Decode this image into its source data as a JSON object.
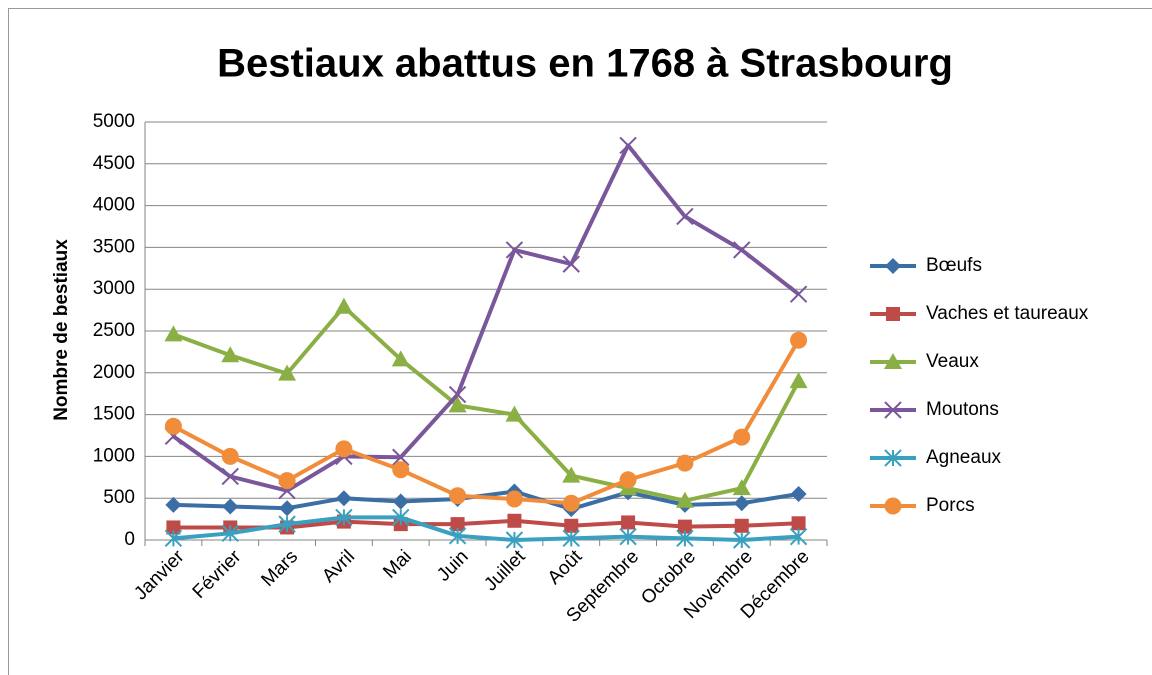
{
  "chart_data": {
    "type": "line",
    "title": "Bestiaux abattus en 1768 à Strasbourg",
    "y_label": "Nombre de bestiaux",
    "categories": [
      "Janvier",
      "Février",
      "Mars",
      "Avril",
      "Mai",
      "Juin",
      "Juillet",
      "Août",
      "Septembre",
      "Octobre",
      "Novembre",
      "Décembre"
    ],
    "series": [
      {
        "name": "Bœufs",
        "color": "#3a6ea5",
        "marker": "diamond",
        "values": [
          420,
          400,
          380,
          500,
          460,
          490,
          580,
          370,
          570,
          420,
          440,
          550
        ]
      },
      {
        "name": "Vaches et taureaux",
        "color": "#be4b48",
        "marker": "square",
        "values": [
          150,
          150,
          150,
          220,
          190,
          190,
          230,
          170,
          210,
          160,
          170,
          200
        ]
      },
      {
        "name": "Veaux",
        "color": "#8aaf44",
        "marker": "triangle",
        "values": [
          2460,
          2210,
          1990,
          2790,
          2160,
          1610,
          1500,
          770,
          620,
          470,
          620,
          1900
        ]
      },
      {
        "name": "Moutons",
        "color": "#7a579a",
        "marker": "x",
        "values": [
          1240,
          760,
          590,
          1000,
          990,
          1740,
          3470,
          3300,
          4720,
          3870,
          3470,
          2940
        ]
      },
      {
        "name": "Agneaux",
        "color": "#3aa0c0",
        "marker": "asterisk",
        "values": [
          20,
          80,
          190,
          270,
          270,
          50,
          0,
          20,
          40,
          20,
          0,
          40
        ]
      },
      {
        "name": "Porcs",
        "color": "#f08c3a",
        "marker": "circle",
        "values": [
          1360,
          1000,
          710,
          1090,
          840,
          530,
          490,
          440,
          720,
          920,
          1230,
          2390
        ]
      }
    ],
    "ylim": [
      0,
      5000
    ],
    "yticks": [
      0,
      500,
      1000,
      1500,
      2000,
      2500,
      3000,
      3500,
      4000,
      4500,
      5000
    ],
    "grid": true,
    "legend": "right"
  }
}
